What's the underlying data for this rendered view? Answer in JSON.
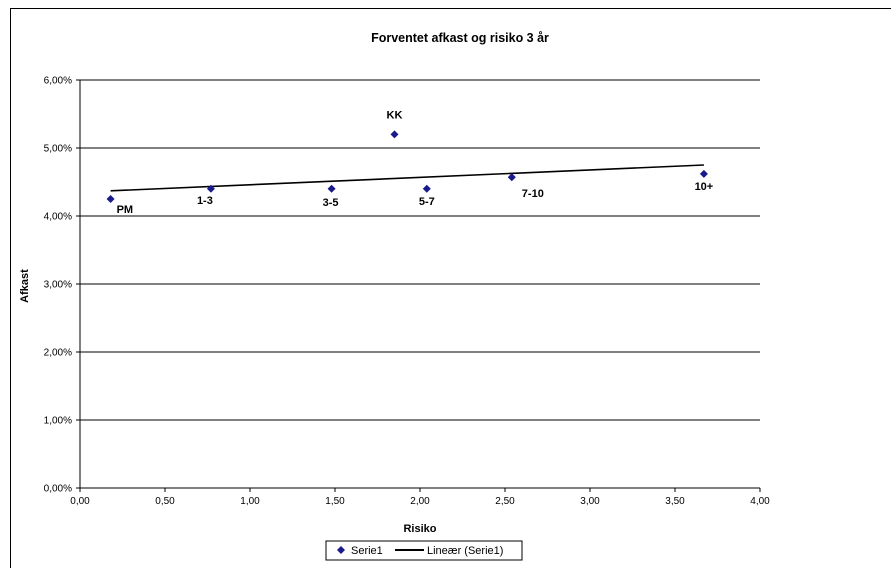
{
  "chart_data": {
    "type": "scatter",
    "title": "Forventet afkast og risiko 3 år",
    "xlabel": "Risiko",
    "ylabel": "Afkast",
    "xlim": [
      0,
      4
    ],
    "ylim": [
      0,
      0.06
    ],
    "xticks": [
      "0,00",
      "0,50",
      "1,00",
      "1,50",
      "2,00",
      "2,50",
      "3,00",
      "3,50",
      "4,00"
    ],
    "yticks": [
      "0,00%",
      "1,00%",
      "2,00%",
      "3,00%",
      "4,00%",
      "5,00%",
      "6,00%"
    ],
    "grid": "horizontal",
    "legend_position": "bottom",
    "series": [
      {
        "name": "Serie1",
        "color": "#1a1a8c",
        "marker": "diamond",
        "points": [
          {
            "label": "PM",
            "x": 0.18,
            "y": 0.0425
          },
          {
            "label": "1-3",
            "x": 0.77,
            "y": 0.044
          },
          {
            "label": "3-5",
            "x": 1.48,
            "y": 0.044
          },
          {
            "label": "KK",
            "x": 1.85,
            "y": 0.052
          },
          {
            "label": "5-7",
            "x": 2.04,
            "y": 0.044
          },
          {
            "label": "7-10",
            "x": 2.54,
            "y": 0.0457
          },
          {
            "label": "10+",
            "x": 3.67,
            "y": 0.0462
          }
        ]
      }
    ],
    "trendline": {
      "name": "Lineær (Serie1)",
      "color": "#000000",
      "x": [
        0.18,
        3.67
      ],
      "y": [
        0.0437,
        0.0475
      ]
    }
  }
}
